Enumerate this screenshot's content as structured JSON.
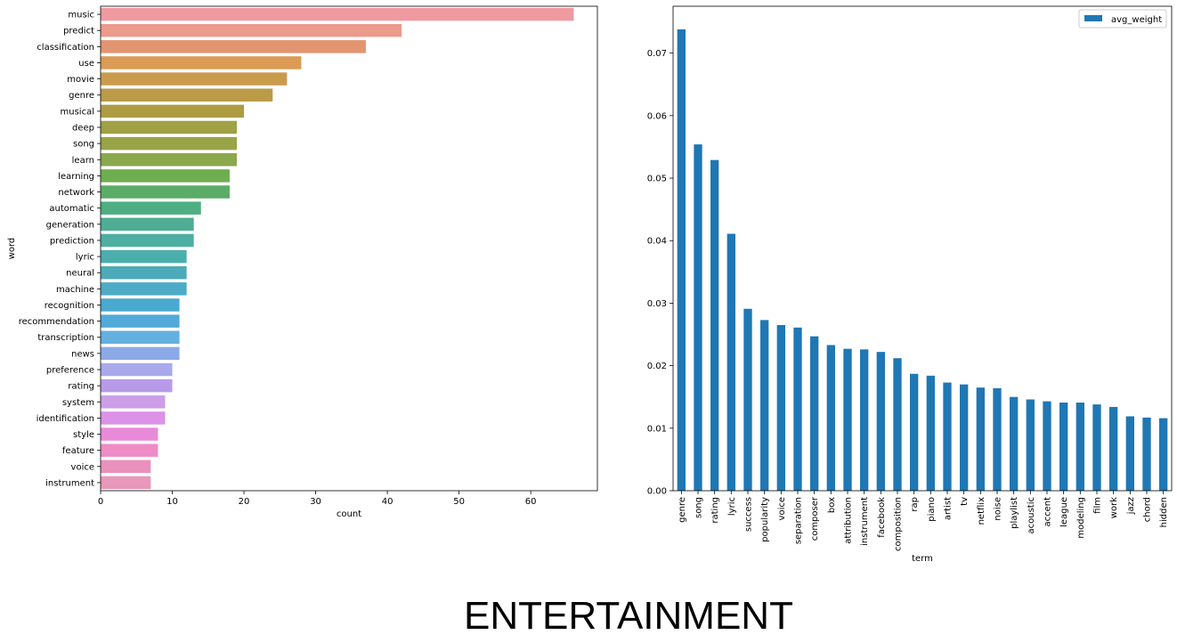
{
  "footer": {
    "title": "ENTERTAINMENT"
  },
  "chart_data": [
    {
      "type": "bar",
      "orientation": "horizontal",
      "categories": [
        "music",
        "predict",
        "classification",
        "use",
        "movie",
        "genre",
        "musical",
        "deep",
        "song",
        "learn",
        "learning",
        "network",
        "automatic",
        "generation",
        "prediction",
        "lyric",
        "neural",
        "machine",
        "recognition",
        "recommendation",
        "transcription",
        "news",
        "preference",
        "rating",
        "system",
        "identification",
        "style",
        "feature",
        "voice",
        "instrument"
      ],
      "values": [
        66,
        42,
        37,
        28,
        26,
        24,
        20,
        19,
        19,
        19,
        18,
        18,
        14,
        13,
        13,
        12,
        12,
        12,
        11,
        11,
        11,
        11,
        10,
        10,
        9,
        9,
        8,
        8,
        7,
        7
      ],
      "colors": [
        "#ef99a0",
        "#eb9a8c",
        "#e39471",
        "#db9b55",
        "#cb9b4d",
        "#bb9a48",
        "#ae9c42",
        "#a0a044",
        "#99a446",
        "#8aa84c",
        "#6fae4e",
        "#5aac66",
        "#4daf83",
        "#4eae95",
        "#4cafa2",
        "#4aaead",
        "#4cabb8",
        "#4cabc6",
        "#4aa9cf",
        "#52aad8",
        "#63b0e0",
        "#8aa9e6",
        "#a9a9ec",
        "#b89be8",
        "#cc9ee8",
        "#dc92e6",
        "#e98ad9",
        "#ee8cc5",
        "#ea90bd",
        "#e898ba"
      ],
      "title": "",
      "xlabel": "count",
      "ylabel": "word",
      "xlim": [
        0,
        69.3
      ],
      "xticks": [
        0,
        10,
        20,
        30,
        40,
        50,
        60
      ],
      "grid": false
    },
    {
      "type": "bar",
      "orientation": "vertical",
      "categories": [
        "genre",
        "song",
        "rating",
        "lyric",
        "success",
        "popularity",
        "voice",
        "separation",
        "composer",
        "box",
        "attribution",
        "instrument",
        "facebook",
        "composition",
        "rap",
        "piano",
        "artist",
        "tv",
        "netflix",
        "noise",
        "playlist",
        "acoustic",
        "accent",
        "league",
        "modeling",
        "film",
        "work",
        "jazz",
        "chord",
        "hidden"
      ],
      "series": [
        {
          "name": "avg_weight",
          "color": "#1f77b4",
          "values": [
            0.0738,
            0.0554,
            0.0529,
            0.0411,
            0.0291,
            0.0273,
            0.0265,
            0.0261,
            0.0247,
            0.0233,
            0.0227,
            0.0226,
            0.0222,
            0.0212,
            0.0187,
            0.0184,
            0.0173,
            0.017,
            0.0165,
            0.0164,
            0.015,
            0.0146,
            0.0143,
            0.0141,
            0.0141,
            0.0138,
            0.0134,
            0.0119,
            0.0117,
            0.0116
          ]
        }
      ],
      "title": "",
      "xlabel": "term",
      "ylabel": "",
      "ylim": [
        0,
        0.0775
      ],
      "yticks": [
        0.0,
        0.01,
        0.02,
        0.03,
        0.04,
        0.05,
        0.06,
        0.07
      ],
      "ytick_labels": [
        "0.00",
        "0.01",
        "0.02",
        "0.03",
        "0.04",
        "0.05",
        "0.06",
        "0.07"
      ],
      "legend": "top-right",
      "grid": false
    }
  ]
}
